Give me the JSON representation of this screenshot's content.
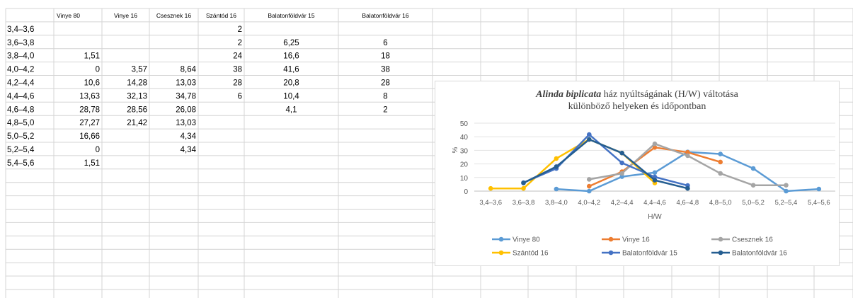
{
  "sheet": {
    "headers": [
      "",
      "Vinye 80",
      "Vinye 16",
      "Csesznek 16",
      "Szántód 16",
      "Balatonföldvár 15",
      "Balatonföldvár 16"
    ],
    "rows": [
      [
        "3,4–3,6",
        "",
        "",
        "",
        "2",
        "",
        ""
      ],
      [
        "3,6–3,8",
        "",
        "",
        "",
        "2",
        "6,25",
        "6"
      ],
      [
        "3,8–4,0",
        "1,51",
        "",
        "",
        "24",
        "16,6",
        "18"
      ],
      [
        "4,0–4,2",
        "0",
        "3,57",
        "8,64",
        "38",
        "41,6",
        "38"
      ],
      [
        "4,2–4,4",
        "10,6",
        "14,28",
        "13,03",
        "28",
        "20,8",
        "28"
      ],
      [
        "4,4–4,6",
        "13,63",
        "32,13",
        "34,78",
        "6",
        "10,4",
        "8"
      ],
      [
        "4,6–4,8",
        "28,78",
        "28,56",
        "26,08",
        "",
        "4,1",
        "2"
      ],
      [
        "4,8–5,0",
        "27,27",
        "21,42",
        "13,03",
        "",
        "",
        ""
      ],
      [
        "5,0–5,2",
        "16,66",
        "",
        "4,34",
        "",
        "",
        ""
      ],
      [
        "5,2–5,4",
        "0",
        "",
        "4,34",
        "",
        "",
        ""
      ],
      [
        "5,4–5,6",
        "1,51",
        "",
        "",
        "",
        "",
        ""
      ]
    ],
    "grid_color": "#d4d4d4"
  },
  "chart_data": {
    "type": "line",
    "title_italic": "Alinda biplicata",
    "title_rest": " ház nyúltságának  (H/W)  váltotása",
    "title_line2": "különböző  helyeken  és  időpontban",
    "xlabel": "H/W",
    "ylabel": "%",
    "categories": [
      "3,4–3,6",
      "3,6–3,8",
      "3,8–4,0",
      "4,0–4,2",
      "4,2–4,4",
      "4,4–4,6",
      "4,6–4,8",
      "4,8–5,0",
      "5,0–5,2",
      "5,2–5,4",
      "5,4–5,6"
    ],
    "ylim": [
      0,
      50
    ],
    "yticks": [
      0,
      10,
      20,
      30,
      40,
      50
    ],
    "grid": true,
    "legend_position": "bottom",
    "series": [
      {
        "name": "Vinye 80",
        "color": "#5b9bd5",
        "values": [
          null,
          null,
          1.51,
          0,
          10.6,
          13.63,
          28.78,
          27.27,
          16.66,
          0,
          1.51
        ]
      },
      {
        "name": "Vinye 16",
        "color": "#ed7d31",
        "values": [
          null,
          null,
          null,
          3.57,
          14.28,
          32.13,
          28.56,
          21.42,
          null,
          null,
          null
        ]
      },
      {
        "name": "Csesznek 16",
        "color": "#a5a5a5",
        "values": [
          null,
          null,
          null,
          8.64,
          13.03,
          34.78,
          26.08,
          13.03,
          4.34,
          4.34,
          null
        ]
      },
      {
        "name": "Szántód 16",
        "color": "#ffc000",
        "values": [
          2,
          2,
          24,
          38,
          28,
          6,
          null,
          null,
          null,
          null,
          null
        ]
      },
      {
        "name": "Balatonföldvár 15",
        "color": "#4472c4",
        "values": [
          null,
          6.25,
          16.6,
          41.6,
          20.8,
          10.4,
          4.1,
          null,
          null,
          null,
          null
        ]
      },
      {
        "name": "Balatonföldvár 16",
        "color": "#255e91",
        "values": [
          null,
          6,
          18,
          38,
          28,
          8,
          2,
          null,
          null,
          null,
          null
        ]
      }
    ]
  }
}
